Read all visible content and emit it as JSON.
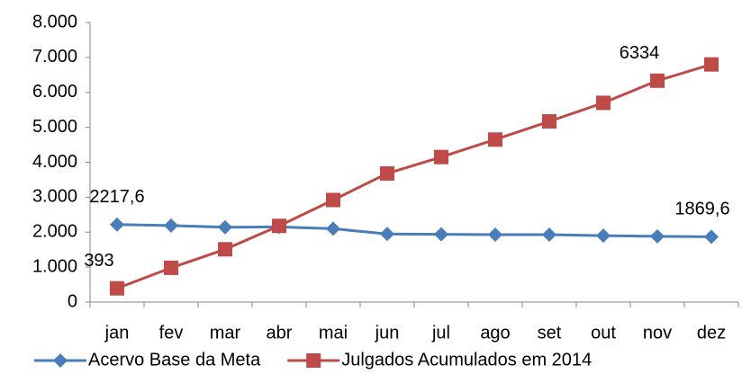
{
  "chart_data": {
    "type": "line",
    "categories": [
      "jan",
      "fev",
      "mar",
      "abr",
      "mai",
      "jun",
      "jul",
      "ago",
      "set",
      "out",
      "nov",
      "dez"
    ],
    "series": [
      {
        "name": "Acervo Base da Meta",
        "color": "#4a7ebb",
        "marker": "diamond",
        "values": [
          2217.6,
          2190,
          2140,
          2150,
          2100,
          1950,
          1940,
          1930,
          1930,
          1900,
          1880,
          1869.6
        ],
        "value_labels": [
          "2217,6",
          null,
          null,
          null,
          null,
          null,
          null,
          null,
          null,
          null,
          null,
          "1869,6"
        ]
      },
      {
        "name": "Julgados Acumulados em 2014",
        "color": "#be4b48",
        "marker": "square",
        "values": [
          393,
          980,
          1510,
          2180,
          2920,
          3680,
          4150,
          4650,
          5170,
          5700,
          6334,
          6800
        ],
        "value_labels": [
          "393",
          null,
          null,
          null,
          null,
          null,
          null,
          null,
          null,
          null,
          "6334",
          null
        ]
      }
    ],
    "ylim": [
      0,
      8000
    ],
    "yticks": [
      0,
      {
        "value": 1000,
        "label": "1.000"
      },
      {
        "value": 2000,
        "label": "2.000"
      },
      {
        "value": 3000,
        "label": "3.000"
      },
      {
        "value": 4000,
        "label": "4.000"
      },
      {
        "value": 5000,
        "label": "5.000"
      },
      {
        "value": 6000,
        "label": "6.000"
      },
      {
        "value": 7000,
        "label": "7.000"
      },
      {
        "value": 8000,
        "label": "8.000"
      }
    ],
    "legend": "bottom"
  }
}
